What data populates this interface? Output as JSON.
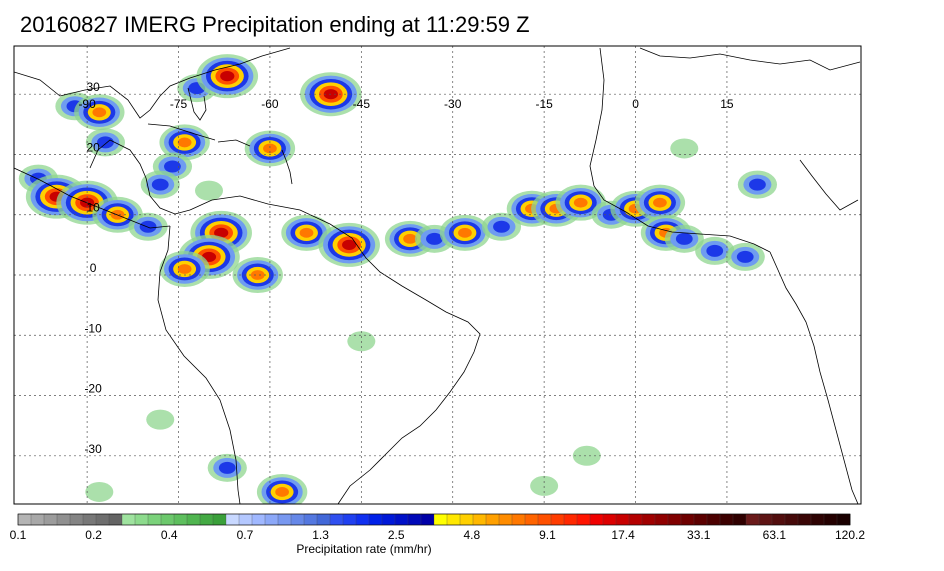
{
  "title": "20160827 IMERG Precipitation ending at 11:29:59 Z",
  "map": {
    "lon_range": [
      -102,
      37
    ],
    "lat_range": [
      -38,
      38
    ],
    "lon_ticks": [
      -90,
      -75,
      -60,
      -45,
      -30,
      -15,
      0,
      15
    ],
    "lat_ticks": [
      30,
      20,
      10,
      0,
      -10,
      -20,
      -30
    ],
    "gridlines": true
  },
  "colorbar": {
    "label": "Precipitation rate (mm/hr)",
    "tick_labels": [
      "0.1",
      "0.2",
      "0.4",
      "0.7",
      "1.3",
      "2.5",
      "4.8",
      "9.1",
      "17.4",
      "33.1",
      "63.1",
      "120.2"
    ],
    "colors": [
      "#b4b4b4",
      "#a8a8a8",
      "#9c9c9c",
      "#909090",
      "#848484",
      "#787878",
      "#6e6e6e",
      "#646464",
      "#9fe39f",
      "#8ddb8d",
      "#7bd27b",
      "#6cc86c",
      "#5ebf5e",
      "#50b550",
      "#44aa44",
      "#3aa03a",
      "#c8d8ff",
      "#b4c8ff",
      "#a0b8ff",
      "#8ca8f8",
      "#7898f0",
      "#6688e8",
      "#5478e0",
      "#4268d8",
      "#3050f0",
      "#2040f0",
      "#1030f0",
      "#0020e8",
      "#0018d8",
      "#0010c8",
      "#0008b8",
      "#0000a8",
      "#ffff00",
      "#ffe800",
      "#ffd000",
      "#ffb800",
      "#ffa000",
      "#ff8c00",
      "#ff7800",
      "#ff6400",
      "#ff5000",
      "#ff3c00",
      "#ff2800",
      "#ff1400",
      "#f00000",
      "#dc0000",
      "#c80000",
      "#b40000",
      "#a00000",
      "#900000",
      "#800000",
      "#6e0000",
      "#5c0000",
      "#4c0000",
      "#3c0000",
      "#300000",
      "#6a1a1a",
      "#5e1414",
      "#520e0e",
      "#460a0a",
      "#3a0606",
      "#2e0303",
      "#240000",
      "#1a0000"
    ]
  },
  "precip_cells": [
    {
      "lon": -92,
      "lat": 28,
      "level": 2
    },
    {
      "lon": -88,
      "lat": 27,
      "level": 3
    },
    {
      "lon": -72,
      "lat": 31,
      "level": 2
    },
    {
      "lon": -67,
      "lat": 33,
      "level": 4
    },
    {
      "lon": -50,
      "lat": 30,
      "level": 4
    },
    {
      "lon": -87,
      "lat": 22,
      "level": 2
    },
    {
      "lon": -74,
      "lat": 22,
      "level": 3
    },
    {
      "lon": -76,
      "lat": 18,
      "level": 2
    },
    {
      "lon": -60,
      "lat": 21,
      "level": 3
    },
    {
      "lon": -78,
      "lat": 15,
      "level": 2
    },
    {
      "lon": -70,
      "lat": 14,
      "level": 1
    },
    {
      "lon": -98,
      "lat": 16,
      "level": 2
    },
    {
      "lon": -95,
      "lat": 13,
      "level": 4
    },
    {
      "lon": -90,
      "lat": 12,
      "level": 4
    },
    {
      "lon": -85,
      "lat": 10,
      "level": 3
    },
    {
      "lon": -80,
      "lat": 8,
      "level": 2
    },
    {
      "lon": -68,
      "lat": 7,
      "level": 4
    },
    {
      "lon": -70,
      "lat": 3,
      "level": 4
    },
    {
      "lon": -74,
      "lat": 1,
      "level": 3
    },
    {
      "lon": -62,
      "lat": 0,
      "level": 3
    },
    {
      "lon": -54,
      "lat": 7,
      "level": 3
    },
    {
      "lon": -47,
      "lat": 5,
      "level": 4
    },
    {
      "lon": -37,
      "lat": 6,
      "level": 3
    },
    {
      "lon": -33,
      "lat": 6,
      "level": 2
    },
    {
      "lon": -28,
      "lat": 7,
      "level": 3
    },
    {
      "lon": -22,
      "lat": 8,
      "level": 2
    },
    {
      "lon": -17,
      "lat": 11,
      "level": 3
    },
    {
      "lon": -13,
      "lat": 11,
      "level": 3
    },
    {
      "lon": -9,
      "lat": 12,
      "level": 3
    },
    {
      "lon": -4,
      "lat": 10,
      "level": 2
    },
    {
      "lon": 0,
      "lat": 11,
      "level": 3
    },
    {
      "lon": 4,
      "lat": 12,
      "level": 3
    },
    {
      "lon": 5,
      "lat": 7,
      "level": 3
    },
    {
      "lon": 8,
      "lat": 6,
      "level": 2
    },
    {
      "lon": 13,
      "lat": 4,
      "level": 2
    },
    {
      "lon": 18,
      "lat": 3,
      "level": 2
    },
    {
      "lon": 20,
      "lat": 15,
      "level": 2
    },
    {
      "lon": 8,
      "lat": 21,
      "level": 1
    },
    {
      "lon": -45,
      "lat": -11,
      "level": 1
    },
    {
      "lon": -58,
      "lat": -36,
      "level": 3
    },
    {
      "lon": -67,
      "lat": -32,
      "level": 2
    },
    {
      "lon": -8,
      "lat": -30,
      "level": 1
    },
    {
      "lon": -15,
      "lat": -35,
      "level": 1
    },
    {
      "lon": -88,
      "lat": -36,
      "level": 1
    },
    {
      "lon": -78,
      "lat": -24,
      "level": 1
    }
  ]
}
